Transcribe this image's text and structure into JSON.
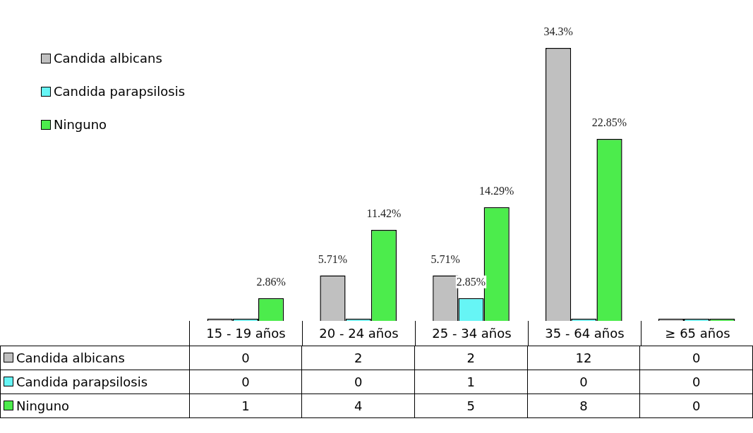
{
  "chart_data": [
    {
      "type": "bar",
      "categories": [
        "15 - 19 años",
        "20 - 24 años",
        "25 - 34 años",
        "35 - 64 años",
        "≥ 65 años"
      ],
      "series": [
        {
          "name": "Candida albicans",
          "color": "#c0c0c0",
          "values": [
            0,
            5.71,
            5.71,
            34.3,
            0
          ],
          "value_labels": [
            null,
            "5.71%",
            "5.71%",
            "34.3%",
            null
          ]
        },
        {
          "name": "Candida parapsilosis",
          "color": "#66f5f5",
          "values": [
            0,
            0,
            2.85,
            0,
            0
          ],
          "value_labels": [
            null,
            null,
            "2.85%",
            null,
            null
          ]
        },
        {
          "name": "Ninguno",
          "color": "#4cec4c",
          "values": [
            2.86,
            11.42,
            14.29,
            22.85,
            0
          ],
          "value_labels": [
            "2.86%",
            "11.42%",
            "14.29%",
            "22.85%",
            null
          ]
        }
      ],
      "legend": "top left",
      "grid": false
    },
    {
      "type": "heatmap",
      "categories": [
        null,
        null,
        null,
        null,
        null
      ],
      "y_categories": [
        "Candida albicans",
        "Candida parapsilosis",
        "Ninguno"
      ],
      "cells": [
        [
          0,
          2,
          2,
          12,
          0
        ],
        [
          0,
          0,
          1,
          0,
          0
        ],
        [
          1,
          4,
          5,
          8,
          0
        ]
      ],
      "data_labels": true
    }
  ]
}
